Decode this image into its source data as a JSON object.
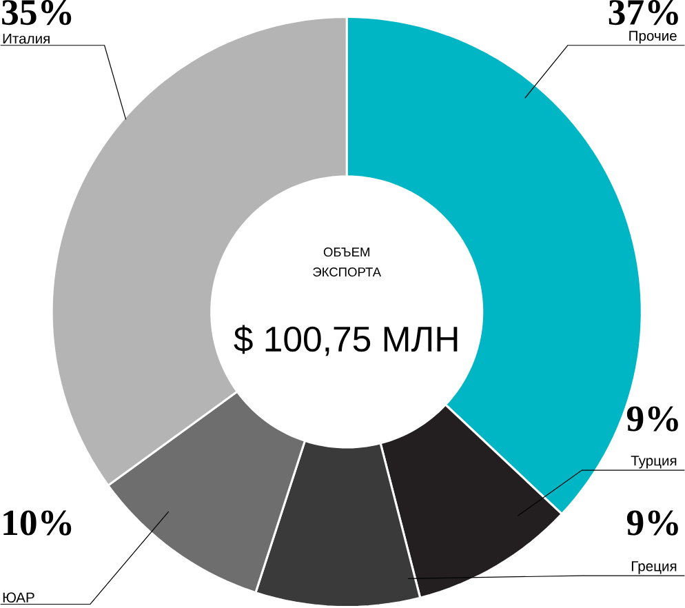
{
  "chart_data": {
    "type": "donut",
    "categories": [
      "Прочие",
      "Турция",
      "Греция",
      "ЮАР",
      "Италия"
    ],
    "values": [
      37,
      9,
      9,
      10,
      35
    ],
    "value_labels": [
      "37%",
      "9%",
      "9%",
      "10%",
      "35%"
    ],
    "colors": [
      "#00b5c4",
      "#231f20",
      "#3a3a3a",
      "#6e6e6e",
      "#b4b4b4"
    ],
    "annotations": [
      "ОБЪЕМ",
      "ЭКСПОРТА",
      "$ 100,75 МЛН"
    ]
  }
}
